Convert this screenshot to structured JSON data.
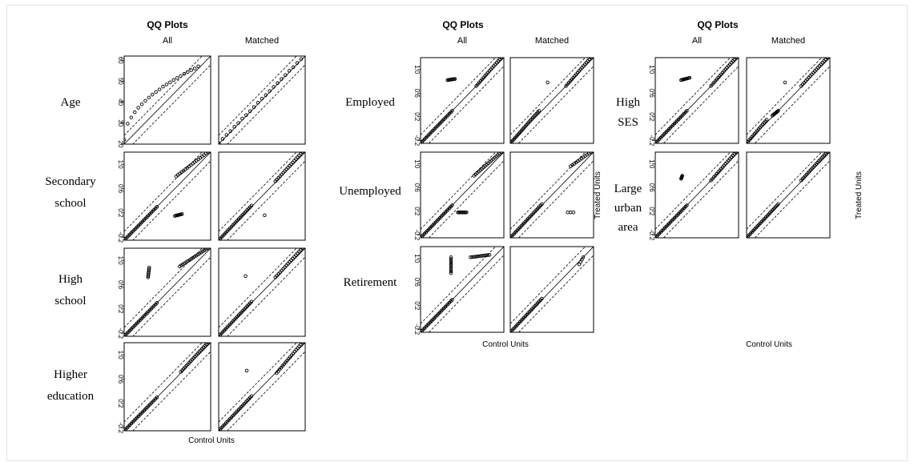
{
  "chart_data": [
    {
      "type": "scatter",
      "title": "QQ Plots",
      "columns": [
        "All",
        "Matched"
      ],
      "xlabel": "Control Units",
      "ylabel": "",
      "rows": [
        {
          "label": [
            "Age"
          ],
          "ticks": [
            "20",
            "30",
            "40",
            "50",
            "60"
          ],
          "lim": [
            20,
            62
          ],
          "all": [
            {
              "from": [
                20,
                22
              ],
              "to": [
                56,
                57
              ],
              "n": 22,
              "shape": "sqrt"
            }
          ],
          "matched": [
            {
              "from": [
                20,
                20.6
              ],
              "to": [
                60,
                60.6
              ],
              "n": 22,
              "shape": "line"
            }
          ]
        },
        {
          "label": [
            "Secondary",
            "school"
          ],
          "ticks": [
            "-0.2",
            "0.2",
            "0.6",
            "1.0"
          ],
          "lim": [
            -0.25,
            1.2
          ],
          "all": [
            {
              "from": [
                -0.25,
                -0.25
              ],
              "to": [
                0.3,
                0.3
              ],
              "n": 24
            },
            {
              "from": [
                0.62,
                0.8
              ],
              "to": [
                1.15,
                1.2
              ],
              "n": 18
            },
            {
              "from": [
                0.6,
                0.15
              ],
              "to": [
                0.72,
                0.18
              ],
              "n": 8
            }
          ],
          "matched": [
            {
              "from": [
                -0.25,
                -0.25
              ],
              "to": [
                0.3,
                0.32
              ],
              "n": 24
            },
            {
              "from": [
                0.7,
                0.72
              ],
              "to": [
                1.15,
                1.2
              ],
              "n": 18
            },
            {
              "from": [
                0.52,
                0.16
              ],
              "to": [
                0.52,
                0.16
              ],
              "n": 1
            }
          ]
        },
        {
          "label": [
            "High",
            "school"
          ],
          "ticks": [
            "-0.2",
            "0.2",
            "0.6",
            "1.0"
          ],
          "lim": [
            -0.25,
            1.2
          ],
          "all": [
            {
              "from": [
                -0.25,
                -0.25
              ],
              "to": [
                0.3,
                0.3
              ],
              "n": 24
            },
            {
              "from": [
                0.68,
                0.9
              ],
              "to": [
                1.15,
                1.2
              ],
              "n": 18
            },
            {
              "from": [
                0.15,
                0.72
              ],
              "to": [
                0.17,
                0.88
              ],
              "n": 8
            }
          ],
          "matched": [
            {
              "from": [
                -0.25,
                -0.25
              ],
              "to": [
                0.3,
                0.32
              ],
              "n": 24
            },
            {
              "from": [
                0.7,
                0.72
              ],
              "to": [
                1.15,
                1.2
              ],
              "n": 18
            },
            {
              "from": [
                0.2,
                0.74
              ],
              "to": [
                0.2,
                0.74
              ],
              "n": 1
            }
          ]
        },
        {
          "label": [
            "Higher",
            "education"
          ],
          "ticks": [
            "-0.2",
            "0.2",
            "0.6",
            "1.0"
          ],
          "lim": [
            -0.25,
            1.2
          ],
          "all": [
            {
              "from": [
                -0.25,
                -0.25
              ],
              "to": [
                0.3,
                0.3
              ],
              "n": 24
            },
            {
              "from": [
                0.7,
                0.72
              ],
              "to": [
                1.15,
                1.2
              ],
              "n": 20
            }
          ],
          "matched": [
            {
              "from": [
                -0.25,
                -0.25
              ],
              "to": [
                0.3,
                0.32
              ],
              "n": 24
            },
            {
              "from": [
                0.72,
                0.7
              ],
              "to": [
                1.15,
                1.2
              ],
              "n": 18
            },
            {
              "from": [
                0.22,
                0.74
              ],
              "to": [
                0.22,
                0.74
              ],
              "n": 1
            }
          ]
        }
      ]
    },
    {
      "type": "scatter",
      "title": "QQ Plots",
      "columns": [
        "All",
        "Matched"
      ],
      "xlabel": "Control Units",
      "ylabel": "Treated Units",
      "rows": [
        {
          "label": [
            "Employed"
          ],
          "ticks": [
            "-0.2",
            "0.2",
            "0.6",
            "1.0"
          ],
          "lim": [
            -0.25,
            1.2
          ],
          "all": [
            {
              "from": [
                -0.25,
                -0.25
              ],
              "to": [
                0.3,
                0.3
              ],
              "n": 24
            },
            {
              "from": [
                0.72,
                0.72
              ],
              "to": [
                1.15,
                1.2
              ],
              "n": 18
            },
            {
              "from": [
                0.22,
                0.82
              ],
              "to": [
                0.35,
                0.84
              ],
              "n": 9
            }
          ],
          "matched": [
            {
              "from": [
                -0.25,
                -0.25
              ],
              "to": [
                0.25,
                0.3
              ],
              "n": 24
            },
            {
              "from": [
                0.72,
                0.72
              ],
              "to": [
                1.15,
                1.2
              ],
              "n": 18
            },
            {
              "from": [
                0.4,
                0.78
              ],
              "to": [
                0.4,
                0.78
              ],
              "n": 1
            }
          ]
        },
        {
          "label": [
            "Unemployed"
          ],
          "ticks": [
            "-0.2",
            "0.2",
            "0.6",
            "1.0"
          ],
          "lim": [
            -0.25,
            1.2
          ],
          "all": [
            {
              "from": [
                -0.25,
                -0.25
              ],
              "to": [
                0.3,
                0.3
              ],
              "n": 24
            },
            {
              "from": [
                0.68,
                0.8
              ],
              "to": [
                1.15,
                1.2
              ],
              "n": 18
            },
            {
              "from": [
                0.4,
                0.18
              ],
              "to": [
                0.55,
                0.18
              ],
              "n": 10
            }
          ],
          "matched": [
            {
              "from": [
                -0.25,
                -0.25
              ],
              "to": [
                0.3,
                0.32
              ],
              "n": 24
            },
            {
              "from": [
                0.8,
                0.96
              ],
              "to": [
                1.15,
                1.2
              ],
              "n": 12
            },
            {
              "from": [
                0.75,
                0.18
              ],
              "to": [
                0.85,
                0.18
              ],
              "n": 3
            }
          ]
        },
        {
          "label": [
            "Retirement"
          ],
          "ticks": [
            "-0.2",
            "0.2",
            "0.6",
            "1.0"
          ],
          "lim": [
            -0.25,
            1.2
          ],
          "all": [
            {
              "from": [
                -0.25,
                -0.25
              ],
              "to": [
                0.3,
                0.3
              ],
              "n": 24
            },
            {
              "from": [
                0.62,
                1.02
              ],
              "to": [
                0.95,
                1.06
              ],
              "n": 12
            },
            {
              "from": [
                0.28,
                0.75
              ],
              "to": [
                0.28,
                1.02
              ],
              "n": 10
            }
          ],
          "matched": [
            {
              "from": [
                -0.25,
                -0.25
              ],
              "to": [
                0.3,
                0.32
              ],
              "n": 24
            },
            {
              "from": [
                0.95,
                0.9
              ],
              "to": [
                1.02,
                1.02
              ],
              "n": 4
            }
          ]
        }
      ]
    },
    {
      "type": "scatter",
      "title": "QQ Plots",
      "columns": [
        "All",
        "Matched"
      ],
      "xlabel": "Control Units",
      "ylabel": "Treated Units",
      "rows": [
        {
          "label": [
            "High",
            "SES"
          ],
          "ticks": [
            "-0.2",
            "0.2",
            "0.6",
            "1.0"
          ],
          "lim": [
            -0.25,
            1.2
          ],
          "all": [
            {
              "from": [
                -0.25,
                -0.25
              ],
              "to": [
                0.3,
                0.3
              ],
              "n": 24
            },
            {
              "from": [
                0.72,
                0.72
              ],
              "to": [
                1.15,
                1.2
              ],
              "n": 18
            },
            {
              "from": [
                0.2,
                0.82
              ],
              "to": [
                0.35,
                0.86
              ],
              "n": 9
            }
          ],
          "matched": [
            {
              "from": [
                -0.25,
                -0.25
              ],
              "to": [
                0.1,
                0.15
              ],
              "n": 16
            },
            {
              "from": [
                0.2,
                0.22
              ],
              "to": [
                0.3,
                0.3
              ],
              "n": 8
            },
            {
              "from": [
                0.7,
                0.72
              ],
              "to": [
                1.15,
                1.2
              ],
              "n": 18
            },
            {
              "from": [
                0.42,
                0.78
              ],
              "to": [
                0.42,
                0.78
              ],
              "n": 1
            }
          ]
        },
        {
          "label": [
            "Large",
            "urban",
            "area"
          ],
          "ticks": [
            "-0.2",
            "0.2",
            "0.6",
            "1.0"
          ],
          "lim": [
            -0.25,
            1.2
          ],
          "all": [
            {
              "from": [
                -0.25,
                -0.25
              ],
              "to": [
                0.3,
                0.3
              ],
              "n": 24
            },
            {
              "from": [
                0.72,
                0.72
              ],
              "to": [
                1.15,
                1.2
              ],
              "n": 18
            },
            {
              "from": [
                0.2,
                0.75
              ],
              "to": [
                0.22,
                0.8
              ],
              "n": 5
            }
          ],
          "matched": [
            {
              "from": [
                -0.25,
                -0.25
              ],
              "to": [
                0.3,
                0.32
              ],
              "n": 24
            },
            {
              "from": [
                0.7,
                0.72
              ],
              "to": [
                1.15,
                1.2
              ],
              "n": 20
            }
          ]
        }
      ]
    }
  ]
}
